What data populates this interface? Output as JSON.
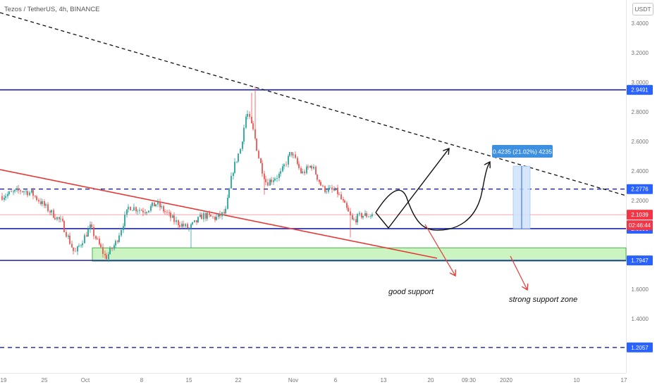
{
  "header": {
    "title": "Tezos / TetherUS, 4h, BINANCE"
  },
  "currency": "USDT",
  "colors": {
    "candle_up": "#26a69a",
    "candle_down": "#ef5350",
    "level_line": "#1e22aa",
    "trend_red": "#e53935",
    "support_zone_fill": "#b6f0a8",
    "support_zone_stroke": "#4caf50",
    "label_blue": "#2962ff",
    "measure_fill": "#cfe3fb",
    "measure_label": "#3d8fe0",
    "countdown_red": "#f23645",
    "current_price_pink": "#f8a4ad"
  },
  "chart_data": {
    "type": "candlestick",
    "y_axis": {
      "ticks": [
        "3.4000",
        "3.2000",
        "3.0000",
        "2.8000",
        "2.6000",
        "2.4000",
        "2.2000",
        "2.0000",
        "1.8000",
        "1.6000",
        "1.4000",
        "1.2000"
      ],
      "range": [
        1.12,
        3.46
      ],
      "position": "right"
    },
    "x_axis": {
      "ticks": [
        "19",
        "25",
        "Oct",
        "8",
        "15",
        "22",
        "Nov",
        "6",
        "13",
        "20",
        "09:30",
        "2020",
        "10",
        "17"
      ]
    },
    "price_labels": {
      "upper_resistance": "2.9491",
      "mid_resistance": "2.2776",
      "current": "2.1039",
      "countdown": "02:46:44",
      "support": "2.0096",
      "zone_bottom": "1.7947",
      "lower": "1.2057"
    },
    "levels": [
      {
        "name": "upper-resistance-line",
        "value": 2.9491,
        "style": "solid"
      },
      {
        "name": "mid-resistance-line",
        "value": 2.2776,
        "style": "dashed"
      },
      {
        "name": "support-line",
        "value": 2.0096,
        "style": "solid"
      },
      {
        "name": "zone-bottom-line",
        "value": 1.7947,
        "style": "solid"
      },
      {
        "name": "lower-dashed-line",
        "value": 1.2057,
        "style": "dashed"
      }
    ],
    "support_zone": {
      "from": 1.79,
      "to": 1.88
    },
    "measure": {
      "from": 2.0096,
      "to": 2.4331,
      "label": "0.4235 (21.02%) 4235"
    },
    "annotations": [
      {
        "name": "good-support-label",
        "text": "good support"
      },
      {
        "name": "strong-support-zone-label",
        "text": "strong support zone"
      }
    ]
  }
}
